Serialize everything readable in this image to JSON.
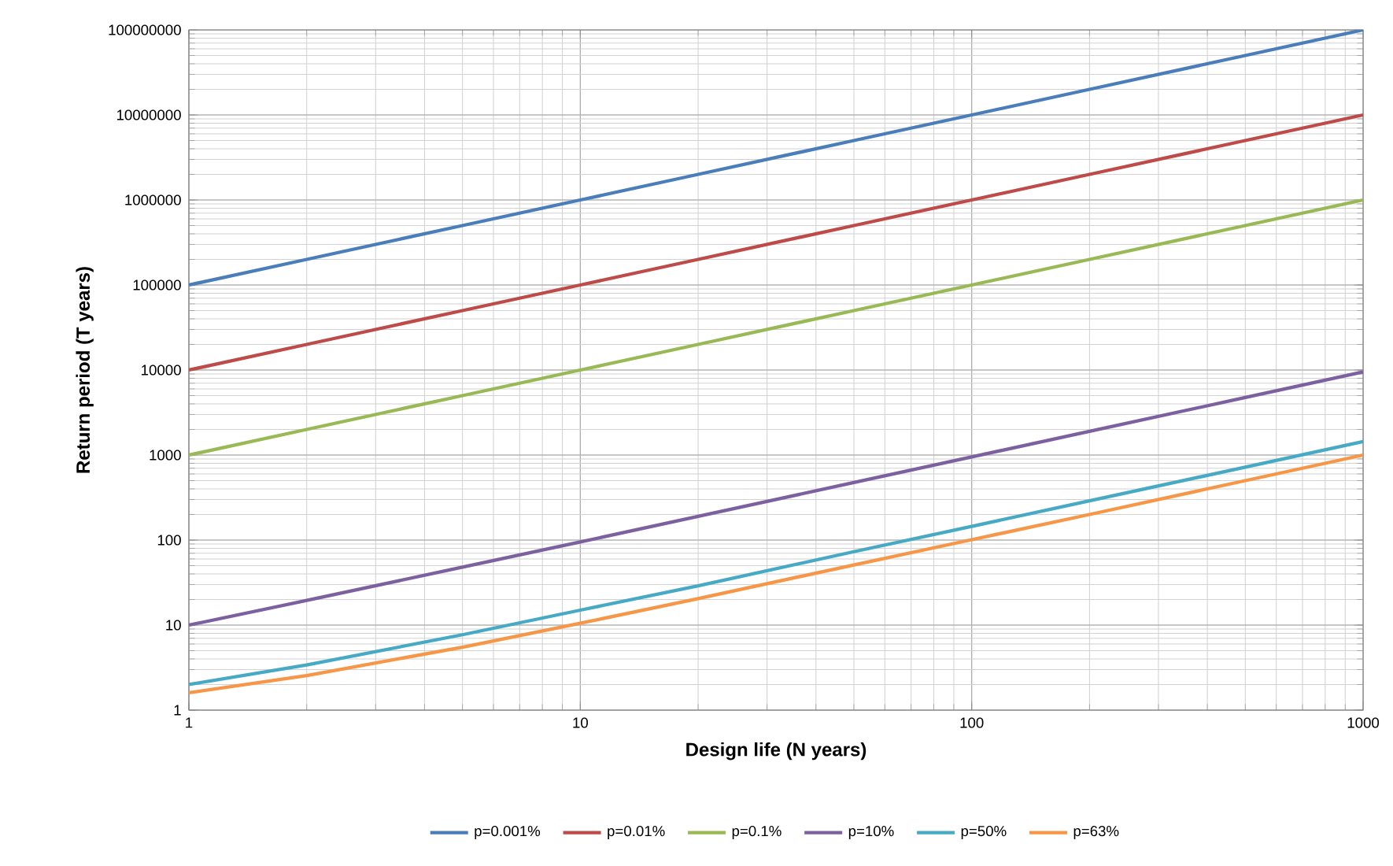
{
  "chart_data": {
    "type": "line",
    "xlabel": "Design life (N years)",
    "ylabel": "Return period (T years)",
    "log": "xy",
    "grid": true,
    "legend": "bottom",
    "marker": "none",
    "line_style": "solid",
    "x": [
      1,
      2,
      5,
      10,
      20,
      50,
      100,
      200,
      500,
      1000
    ],
    "xlim": [
      1,
      1000
    ],
    "xticks": [
      1,
      10,
      100,
      1000
    ],
    "ylim": [
      1,
      100000000
    ],
    "yticks": [
      1,
      10,
      100,
      1000,
      10000,
      100000,
      1000000,
      10000000,
      100000000
    ],
    "series": [
      {
        "name": "p=0.001%",
        "color": "#4a7ebb",
        "values": [
          100000,
          200000,
          500000,
          1000000,
          2000000,
          5000000,
          10000000,
          20000000,
          50000000,
          100000000
        ]
      },
      {
        "name": "p=0.01%",
        "color": "#be4b48",
        "values": [
          10000,
          20000,
          50000,
          100000,
          200000,
          500000,
          1000000,
          2000000,
          5000000,
          10000000
        ]
      },
      {
        "name": "p=0.1%",
        "color": "#98b954",
        "values": [
          1000,
          2000,
          5000,
          10000,
          20000,
          50000,
          100000,
          200000,
          500000,
          1000000
        ]
      },
      {
        "name": "p=10%",
        "color": "#7d60a0",
        "values": [
          10,
          19.5,
          48,
          95,
          190,
          475,
          950,
          1900,
          4750,
          9500
        ]
      },
      {
        "name": "p=50%",
        "color": "#46aac5",
        "values": [
          2,
          3.4,
          7.7,
          15,
          29,
          73,
          145,
          290,
          720,
          1440
        ]
      },
      {
        "name": "p=63%",
        "color": "#f79646",
        "values": [
          1.6,
          2.55,
          5.5,
          10.5,
          20.5,
          51,
          101,
          200,
          500,
          1000
        ]
      }
    ]
  }
}
